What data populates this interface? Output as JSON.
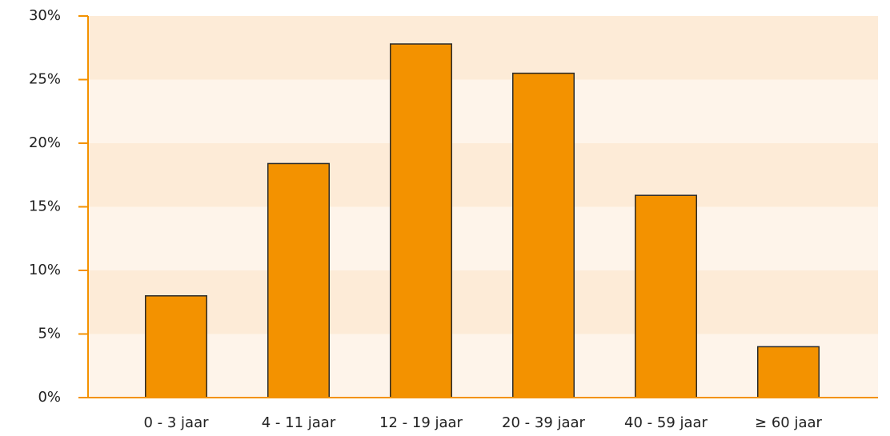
{
  "chart_data": {
    "type": "bar",
    "categories": [
      "0 - 3 jaar",
      "4 - 11 jaar",
      "12 - 19 jaar",
      "20 - 39 jaar",
      "40 - 59 jaar",
      "≥ 60 jaar"
    ],
    "values": [
      8,
      18.4,
      27.8,
      25.5,
      15.9,
      4.0
    ],
    "color": "#f39200",
    "ylim": [
      0,
      30
    ],
    "yticks": [
      {
        "value": 0,
        "label": "0%"
      },
      {
        "value": 5,
        "label": "5%"
      },
      {
        "value": 10,
        "label": "10%"
      },
      {
        "value": 15,
        "label": "15%"
      },
      {
        "value": 20,
        "label": "20%"
      },
      {
        "value": 25,
        "label": "25%"
      },
      {
        "value": 30,
        "label": "30%"
      }
    ],
    "grid": true
  }
}
